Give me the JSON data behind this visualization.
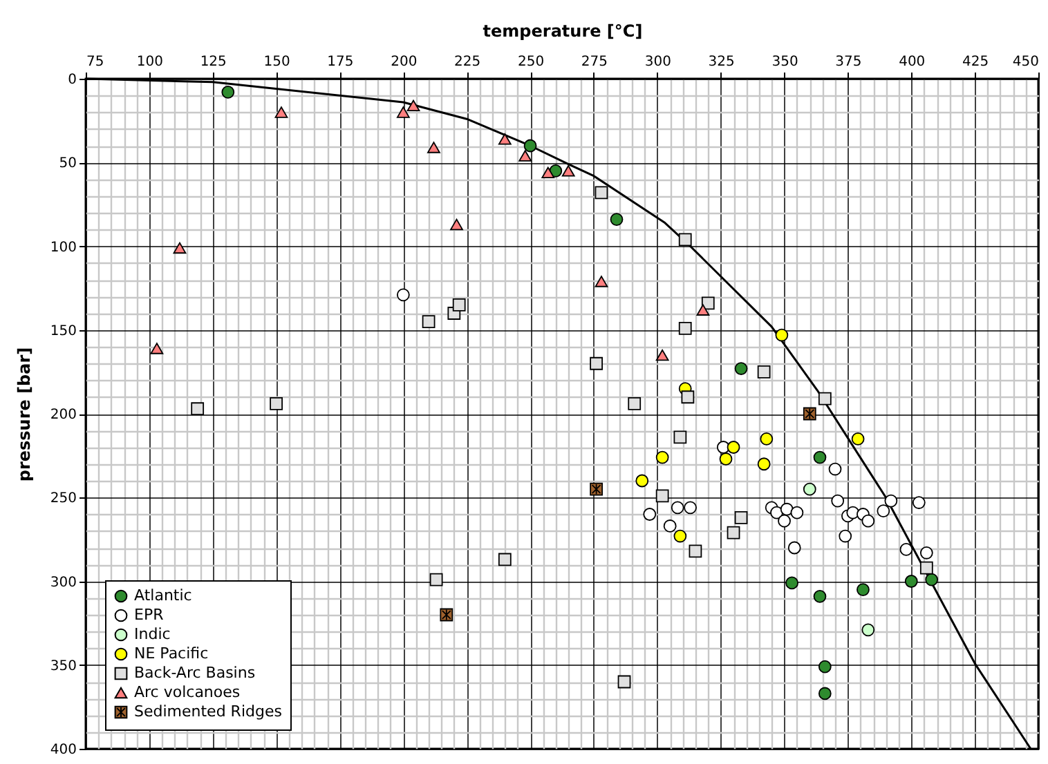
{
  "chart_data": {
    "type": "scatter",
    "xlabel": "temperature [°C]",
    "ylabel": "pressure [bar]",
    "xlim": [
      75,
      450
    ],
    "xticks": [
      75,
      100,
      125,
      150,
      175,
      200,
      225,
      250,
      275,
      300,
      325,
      350,
      375,
      400,
      425,
      450
    ],
    "ylim": [
      400,
      0
    ],
    "yticks": [
      0,
      50,
      100,
      150,
      200,
      250,
      300,
      350,
      400
    ],
    "grid": true,
    "legend": "bottom left",
    "series": [
      {
        "type": "line",
        "color": "#000000",
        "marker": "none",
        "x": [
          75,
          125,
          200,
          225,
          250,
          265,
          275,
          303,
          313,
          345,
          363,
          390,
          425,
          447
        ],
        "values": [
          0,
          2,
          14,
          24,
          40,
          51,
          58,
          86,
          100,
          148,
          186,
          250,
          349,
          400
        ]
      },
      {
        "name": "Atlantic",
        "type": "scatter",
        "color": "#2e8b2e",
        "marker": "circle",
        "x": [
          131,
          250,
          260,
          284,
          333,
          364,
          353,
          364,
          381,
          400,
          408,
          366,
          366
        ],
        "values": [
          8,
          40,
          55,
          84,
          173,
          226,
          301,
          309,
          305,
          300,
          299,
          351,
          367
        ]
      },
      {
        "name": "EPR",
        "type": "scatter",
        "color": "#ffffff",
        "marker": "circle",
        "x": [
          200,
          326,
          370,
          297,
          308,
          313,
          305,
          345,
          347,
          351,
          355,
          350,
          354,
          371,
          374,
          375,
          377,
          381,
          383,
          389,
          392,
          403,
          398,
          406
        ],
        "values": [
          129,
          220,
          233,
          260,
          256,
          256,
          267,
          256,
          259,
          257,
          259,
          264,
          280,
          252,
          273,
          261,
          259,
          260,
          264,
          258,
          252,
          253,
          281,
          283
        ]
      },
      {
        "name": "Indic",
        "type": "scatter",
        "color": "#ccffcc",
        "marker": "circle",
        "x": [
          360,
          383
        ],
        "values": [
          245,
          329
        ]
      },
      {
        "name": "NE Pacific",
        "type": "scatter",
        "color": "#ffff00",
        "marker": "circle",
        "x": [
          349,
          311,
          343,
          379,
          330,
          302,
          327,
          342,
          294,
          309
        ],
        "values": [
          153,
          185,
          215,
          215,
          220,
          226,
          227,
          230,
          240,
          273
        ]
      },
      {
        "name": "Back-Arc Basins",
        "type": "scatter",
        "color": "#e0e0e0",
        "marker": "square",
        "x": [
          210,
          220,
          222,
          278,
          311,
          320,
          311,
          276,
          342,
          366,
          312,
          291,
          309,
          302,
          333,
          330,
          315,
          406,
          287,
          119,
          150,
          213,
          240
        ],
        "values": [
          145,
          140,
          135,
          68,
          96,
          134,
          149,
          170,
          175,
          191,
          190,
          194,
          214,
          249,
          262,
          271,
          282,
          292,
          360,
          197,
          194,
          299,
          287
        ]
      },
      {
        "name": "Arc volcanoes",
        "type": "scatter",
        "color": "#ff7f7f",
        "marker": "triangle",
        "x": [
          152,
          200,
          204,
          212,
          240,
          248,
          257,
          265,
          221,
          112,
          103,
          278,
          318,
          302
        ],
        "values": [
          20,
          20,
          16,
          41,
          36,
          46,
          56,
          55,
          87,
          101,
          161,
          121,
          138,
          165
        ]
      },
      {
        "name": "Sedimented Ridges",
        "type": "scatter",
        "color": "#a0622d",
        "marker": "cross",
        "x": [
          360,
          276,
          217
        ],
        "values": [
          200,
          245,
          320
        ]
      }
    ]
  }
}
